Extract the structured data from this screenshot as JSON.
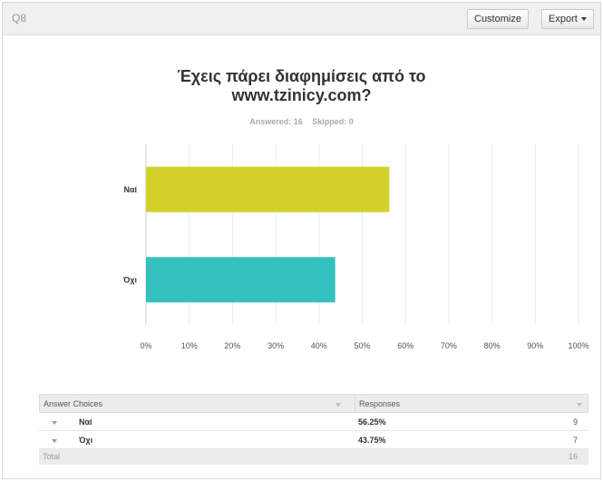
{
  "header": {
    "question_label": "Q8",
    "customize_label": "Customize",
    "export_label": "Export"
  },
  "chart_data": {
    "type": "bar",
    "orientation": "horizontal",
    "title_lines": [
      "Έχεις πάρει διαφημίσεις από το",
      "www.tzinicy.com?"
    ],
    "answered_text": "Answered: 16",
    "skipped_text": "Skipped: 0",
    "categories": [
      "Ναί",
      "Όχι"
    ],
    "values": [
      56.25,
      43.75
    ],
    "colors": [
      "#d1d12a",
      "#35c0c0"
    ],
    "xlim": [
      0,
      100
    ],
    "x_ticks": [
      "0%",
      "10%",
      "20%",
      "30%",
      "40%",
      "50%",
      "60%",
      "70%",
      "80%",
      "90%",
      "100%"
    ],
    "grid": true
  },
  "table": {
    "headers": {
      "choices": "Answer Choices",
      "responses": "Responses"
    },
    "rows": [
      {
        "label": "Ναί",
        "percent": "56.25%",
        "count": "9"
      },
      {
        "label": "Όχι",
        "percent": "43.75%",
        "count": "7"
      }
    ],
    "total_label": "Total",
    "total_count": "16"
  }
}
